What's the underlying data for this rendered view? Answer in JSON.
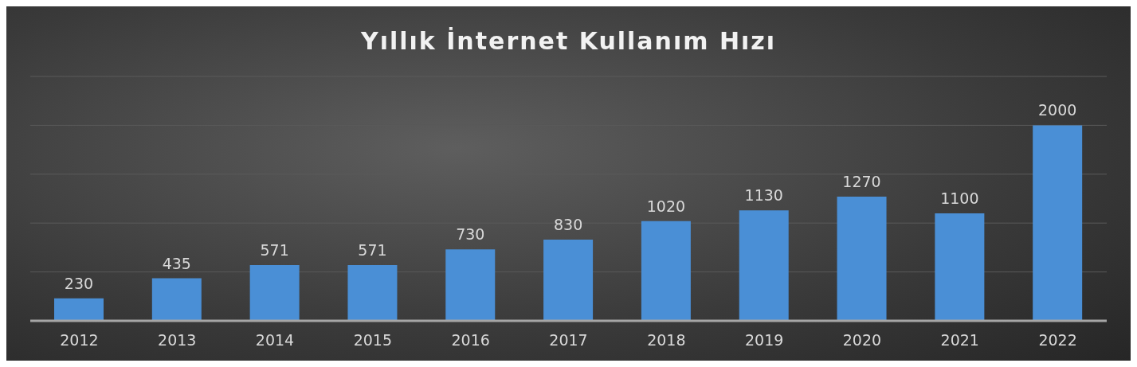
{
  "chart_data": {
    "type": "bar",
    "title": "Yıllık İnternet Kullanım Hızı",
    "categories": [
      "2012",
      "2013",
      "2014",
      "2015",
      "2016",
      "2017",
      "2018",
      "2019",
      "2020",
      "2021",
      "2022"
    ],
    "values": [
      230,
      435,
      571,
      571,
      730,
      830,
      1020,
      1130,
      1270,
      1100,
      2000
    ],
    "color": "#4a8fd6",
    "ylim": [
      0,
      2500
    ],
    "yticks": [
      {
        "value": 0,
        "label": null
      },
      {
        "value": 500,
        "label": null
      },
      {
        "value": 1000,
        "label": null
      },
      {
        "value": 1500,
        "label": null
      },
      {
        "value": 2000,
        "label": null
      },
      {
        "value": 2500,
        "label": null
      }
    ],
    "tick_labels": "x",
    "grid": "y",
    "data_labels": true,
    "legend": false
  }
}
